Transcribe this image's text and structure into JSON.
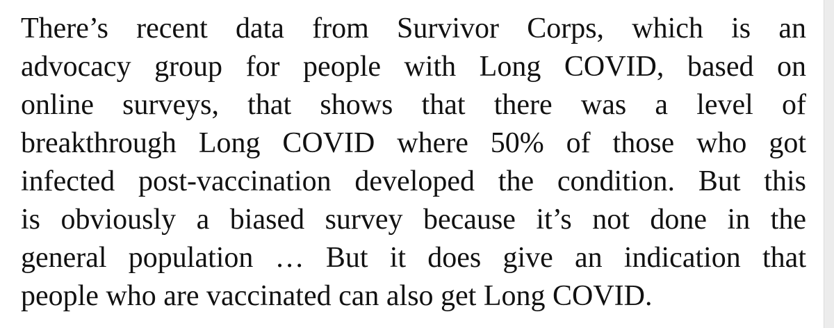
{
  "paragraph": {
    "lines": [
      "There’s recent data from Survivor Corps, which is an",
      "advocacy group for people with Long COVID, based on",
      "online surveys, that shows that there was a level of",
      "breakthrough Long COVID where 50% of those who got",
      "infected post-vaccination developed the condition. But this",
      "is obviously a biased survey because it’s not done in the",
      "general population … But it does give an indication that",
      "people who are vaccinated can also get Long COVID."
    ]
  }
}
